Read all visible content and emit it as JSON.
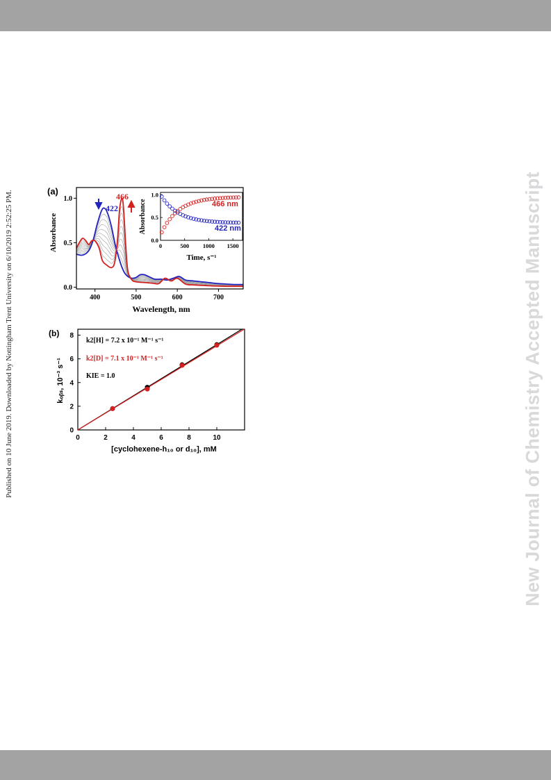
{
  "header_bar_color": "#a3a3a3",
  "footer_bar_color": "#a3a3a3",
  "side_note_left": "Published on 10 June 2019. Downloaded by Nottingham Trent University on 6/10/2019 2:52:25 PM.",
  "side_note_right": "New Journal of Chemistry Accepted Manuscript",
  "colors": {
    "red": "#d42020",
    "blue": "#2323c0",
    "black": "#000000",
    "grey": "#9a9a9a",
    "watermark": "#d9d9dc"
  },
  "chart_data": [
    {
      "panel_label": "(a)",
      "type": "line",
      "xlabel": "Wavelength, nm",
      "ylabel": "Absorbance",
      "xlim": [
        355,
        760
      ],
      "ylim": [
        -0.02,
        1.12
      ],
      "xticks": [
        "400",
        "500",
        "600",
        "700"
      ],
      "yticks": [
        "0.0",
        "0.5",
        "1.0"
      ],
      "annotations": [
        {
          "text": "422",
          "color": "#2323c0",
          "arrow": "down",
          "x": 422
        },
        {
          "text": "466",
          "color": "#d42020",
          "arrow": "up",
          "x": 466
        }
      ],
      "series": [
        {
          "color": "#2323c0",
          "x": [
            355,
            370,
            385,
            395,
            405,
            415,
            422,
            430,
            440,
            450,
            458,
            465,
            472,
            480,
            490,
            500,
            510,
            520,
            530,
            545,
            560,
            575,
            590,
            605,
            620,
            640,
            660,
            680,
            700,
            720,
            740,
            760
          ],
          "y": [
            0.37,
            0.36,
            0.41,
            0.52,
            0.7,
            0.85,
            0.89,
            0.84,
            0.68,
            0.46,
            0.33,
            0.23,
            0.16,
            0.12,
            0.1,
            0.11,
            0.14,
            0.14,
            0.12,
            0.09,
            0.09,
            0.08,
            0.1,
            0.12,
            0.08,
            0.07,
            0.06,
            0.05,
            0.04,
            0.035,
            0.03,
            0.03
          ]
        },
        {
          "color": "#d42020",
          "x": [
            355,
            362,
            370,
            378,
            385,
            392,
            400,
            410,
            418,
            428,
            440,
            448,
            455,
            460,
            466,
            470,
            475,
            480,
            490,
            500,
            510,
            525,
            540,
            555,
            570,
            585,
            600,
            620,
            640,
            660,
            680,
            700,
            720,
            740,
            760
          ],
          "y": [
            0.44,
            0.5,
            0.55,
            0.52,
            0.48,
            0.52,
            0.52,
            0.44,
            0.3,
            0.25,
            0.22,
            0.28,
            0.55,
            0.88,
            1.0,
            0.85,
            0.45,
            0.18,
            0.08,
            0.06,
            0.055,
            0.05,
            0.045,
            0.04,
            0.1,
            0.07,
            0.1,
            0.035,
            0.025,
            0.02,
            0.015,
            0.012,
            0.01,
            0.01,
            0.01
          ]
        }
      ],
      "inset": {
        "type": "scatter",
        "xlabel": "Time, s⁻¹",
        "ylabel": "Absorbance",
        "xlim": [
          0,
          1700
        ],
        "ylim": [
          0,
          1.05
        ],
        "xticks": [
          "0",
          "500",
          "1000",
          "1500"
        ],
        "yticks": [
          "0.0",
          "0.5",
          "1.0"
        ],
        "series": [
          {
            "name": "466 nm",
            "color": "#d42020",
            "rate": 0.0028,
            "start": 0.12,
            "end": 0.95
          },
          {
            "name": "422 nm",
            "color": "#2323c0",
            "rate": 0.0028,
            "start": 1.0,
            "end": 0.38
          }
        ]
      }
    },
    {
      "panel_label": "(b)",
      "type": "scatter",
      "xlabel": "[cyclohexene-h₁₀ or d₁₀], mM",
      "ylabel": "kₒᵦₛ, 10⁻³ s⁻¹",
      "xlim": [
        0,
        12
      ],
      "ylim": [
        0,
        8.5
      ],
      "xticks": [
        "0",
        "2",
        "4",
        "6",
        "8",
        "10"
      ],
      "yticks": [
        "0",
        "2",
        "4",
        "6",
        "8"
      ],
      "legend": [
        {
          "text": "k2[H] = 7.2 x 10⁻¹ M⁻¹ s⁻¹",
          "color": "#000000"
        },
        {
          "text": "k2[D] = 7.1 x 10⁻¹ M⁻¹ s⁻¹",
          "color": "#d42020"
        },
        {
          "text": "KIE = 1.0",
          "color": "#000000"
        }
      ],
      "series": [
        {
          "color": "#000000",
          "x": [
            2.5,
            5.0,
            7.5,
            10.0
          ],
          "y": [
            1.8,
            3.6,
            5.5,
            7.2
          ],
          "slope": 0.72
        },
        {
          "color": "#d42020",
          "x": [
            2.5,
            5.0,
            7.5,
            10.0
          ],
          "y": [
            1.8,
            3.45,
            5.45,
            7.15
          ],
          "slope": 0.71
        }
      ]
    }
  ]
}
